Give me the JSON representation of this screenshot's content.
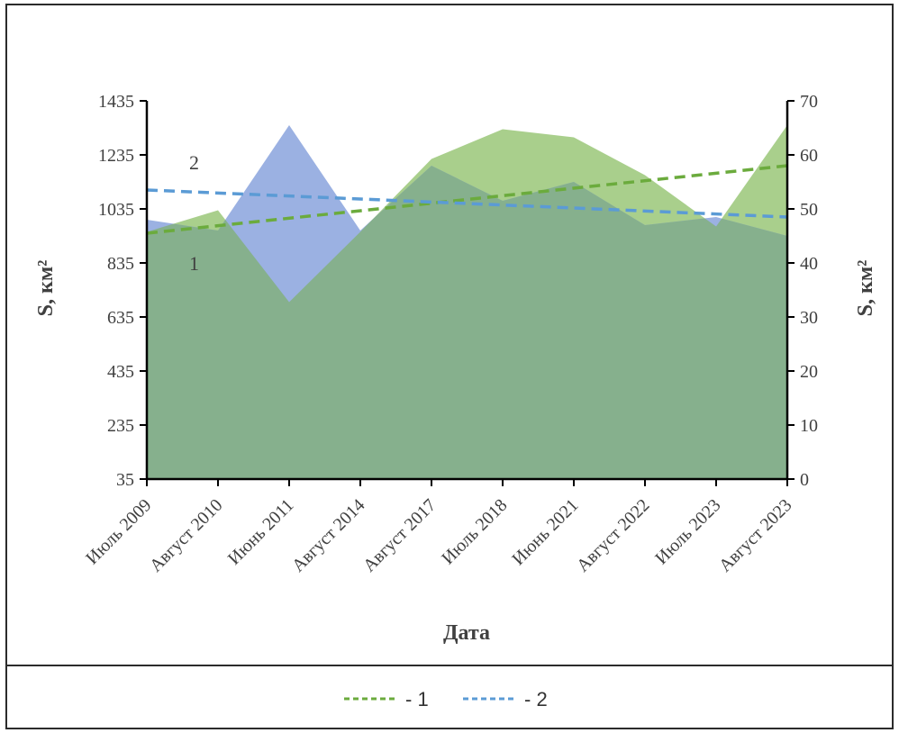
{
  "chart_data": {
    "type": "area",
    "categories": [
      "Июль 2009",
      "Август 2010",
      "Июнь 2011",
      "Август 2014",
      "Август 2017",
      "Июль 2018",
      "Июнь 2021",
      "Август 2022",
      "Июль 2023",
      "Август 2023"
    ],
    "xlabel": "Дата",
    "ylabel_left": "S, км²",
    "ylabel_right": "S, км²",
    "y_left": {
      "ticks": [
        35,
        235,
        435,
        635,
        835,
        1035,
        1235,
        1435
      ],
      "ylim": [
        35,
        1435
      ]
    },
    "y_right": {
      "ticks": [
        0,
        10,
        20,
        30,
        40,
        50,
        60,
        70
      ],
      "ylim": [
        0,
        70
      ]
    },
    "series": [
      {
        "label": "1",
        "axis": "left",
        "color": "#a9cf8c",
        "values": [
          950,
          1030,
          690,
          950,
          1220,
          1330,
          1300,
          1160,
          970,
          1345
        ]
      },
      {
        "label": "2",
        "axis": "right",
        "color": "#9bb1e2",
        "values": [
          48,
          46,
          65.5,
          46,
          58,
          51.5,
          55,
          47,
          48.5,
          45
        ]
      }
    ],
    "trendlines": [
      {
        "label": "- 1",
        "axis": "left",
        "color": "#6bab3d",
        "start": 945,
        "end": 1195
      },
      {
        "label": "- 2",
        "axis": "right",
        "color": "#5b9bd5",
        "start": 53.5,
        "end": 48.5
      }
    ],
    "series_labels": [
      "2",
      "1"
    ],
    "legend": [
      {
        "label": "- 1",
        "color": "#6bab3d"
      },
      {
        "label": "- 2",
        "color": "#5b9bd5"
      }
    ],
    "overlap_color": "#86b08d",
    "legend_position": "bottom"
  }
}
